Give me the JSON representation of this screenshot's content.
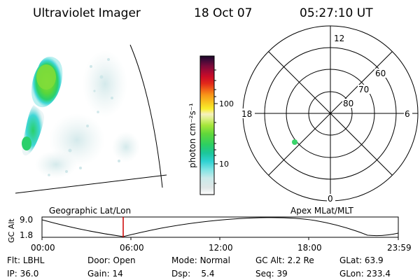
{
  "header": {
    "instrument": "Ultraviolet Imager",
    "date": "18 Oct 07",
    "time": "05:27:10 UT"
  },
  "colorbar": {
    "unit_label": "photon cm⁻²s⁻¹",
    "tick_labels": [
      "100",
      "10"
    ],
    "scale": "log",
    "colors": [
      "#ffffff",
      "#e6e6e6",
      "#cfe7e9",
      "#8fe6e6",
      "#3fd6d6",
      "#1fc8a0",
      "#2ad06a",
      "#5ad63a",
      "#8fe03a",
      "#c8ee3a",
      "#f0f0a0",
      "#f8f020",
      "#f8c820",
      "#f89a18",
      "#f06818",
      "#e83018",
      "#d81020",
      "#b80830",
      "#900838",
      "#6a0a3a",
      "#400a38",
      "#200830"
    ]
  },
  "polar_plot": {
    "hour_labels": [
      "12",
      "18",
      "6",
      "0"
    ],
    "lat_labels": [
      "60",
      "70",
      "80"
    ]
  },
  "timeline": {
    "gc_alt_label": "GC Alt",
    "y_ticks": [
      "9.0",
      "1.8"
    ],
    "left_label": "Geographic Lat/Lon",
    "right_label": "Apex MLat/MLT",
    "x_ticks": [
      "00:00",
      "06:00",
      "12:00",
      "18:00",
      "23:59"
    ],
    "marker_color": "#cc0000"
  },
  "footer": {
    "row1": [
      {
        "label": "Flt:",
        "value": "LBHL"
      },
      {
        "label": "Door:",
        "value": "Open"
      },
      {
        "label": "Mode:",
        "value": "Normal"
      },
      {
        "label": "GC Alt:",
        "value": "2.2 Re"
      },
      {
        "label": "GLat:",
        "value": "63.9"
      }
    ],
    "row2": [
      {
        "label": "IP:",
        "value": "36.0"
      },
      {
        "label": "Gain:",
        "value": "14"
      },
      {
        "label": "Dsp:",
        "value": "5.4"
      },
      {
        "label": "Seq:",
        "value": "39"
      },
      {
        "label": "GLon:",
        "value": "233.4"
      }
    ]
  }
}
